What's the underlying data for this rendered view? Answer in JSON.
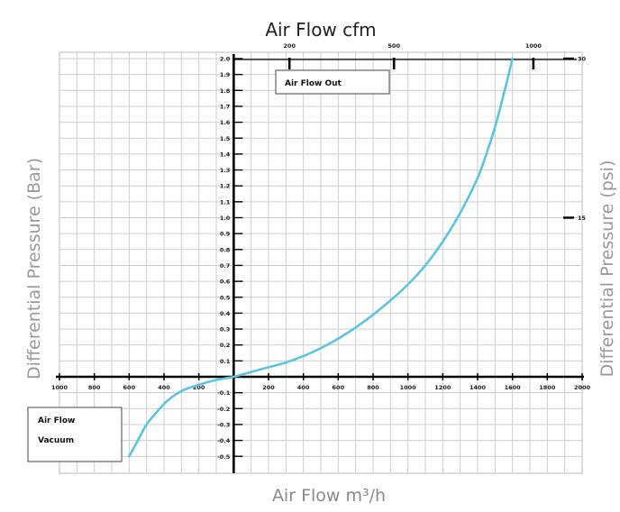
{
  "chart_data": {
    "type": "line",
    "title": "Air Flow cfm",
    "xlabel": "Air Flow m³/h",
    "ylabel_left": "Differential Pressure (Bar)",
    "ylabel_right": "Differential Pressure (psi)",
    "x_tick_labels": [
      "1000",
      "800",
      "600",
      "400",
      "200",
      "200",
      "400",
      "600",
      "800",
      "1000",
      "1200",
      "1400",
      "1600",
      "1800",
      "2000"
    ],
    "x_tick_values": [
      -1000,
      -800,
      -600,
      -400,
      -200,
      200,
      400,
      600,
      800,
      1000,
      1200,
      1400,
      1600,
      1800,
      2000
    ],
    "y_tick_labels": [
      "2.0",
      "1.9",
      "1.8",
      "1.7",
      "1.6",
      "1.5",
      "1.4",
      "1.3",
      "1.2",
      "1.1",
      "1.0",
      "0.9",
      "0.8",
      "0.7",
      "0.6",
      "0.5",
      "0.4",
      "0.3",
      "0.2",
      "0.1",
      "-0.1",
      "-0.2",
      "-0.3",
      "-0.4",
      "-0.5"
    ],
    "y_tick_values": [
      2.0,
      1.9,
      1.8,
      1.7,
      1.6,
      1.5,
      1.4,
      1.3,
      1.2,
      1.1,
      1.0,
      0.9,
      0.8,
      0.7,
      0.6,
      0.5,
      0.4,
      0.3,
      0.2,
      0.1,
      -0.1,
      -0.2,
      -0.3,
      -0.4,
      -0.5
    ],
    "top_ticks": [
      {
        "label": "200",
        "x": 320
      },
      {
        "label": "500",
        "x": 920
      },
      {
        "label": "1000",
        "x": 1720
      }
    ],
    "right_ticks": [
      {
        "label": "30",
        "y": 2.0
      },
      {
        "label": "15",
        "y": 1.0
      }
    ],
    "xlim": [
      -1000,
      2000
    ],
    "ylim": [
      -0.55,
      2.0
    ],
    "grid": true,
    "series": [
      {
        "color": "#5bc4e0",
        "x": [
          -600,
          -560,
          -500,
          -440,
          -380,
          -300,
          -200,
          -100,
          0,
          100,
          200,
          300,
          400,
          500,
          600,
          700,
          800,
          900,
          1000,
          1100,
          1200,
          1300,
          1400,
          1450,
          1500,
          1560,
          1600
        ],
        "y": [
          -0.5,
          -0.42,
          -0.3,
          -0.22,
          -0.15,
          -0.09,
          -0.05,
          -0.02,
          0,
          0.03,
          0.06,
          0.09,
          0.13,
          0.18,
          0.24,
          0.31,
          0.39,
          0.48,
          0.58,
          0.7,
          0.85,
          1.03,
          1.25,
          1.4,
          1.57,
          1.82,
          2.0
        ]
      }
    ],
    "annotations": [
      {
        "id": "out",
        "lines": [
          "Air Flow Out"
        ]
      },
      {
        "id": "vacuum",
        "lines": [
          "Air Flow",
          "Vacuum"
        ]
      }
    ]
  }
}
